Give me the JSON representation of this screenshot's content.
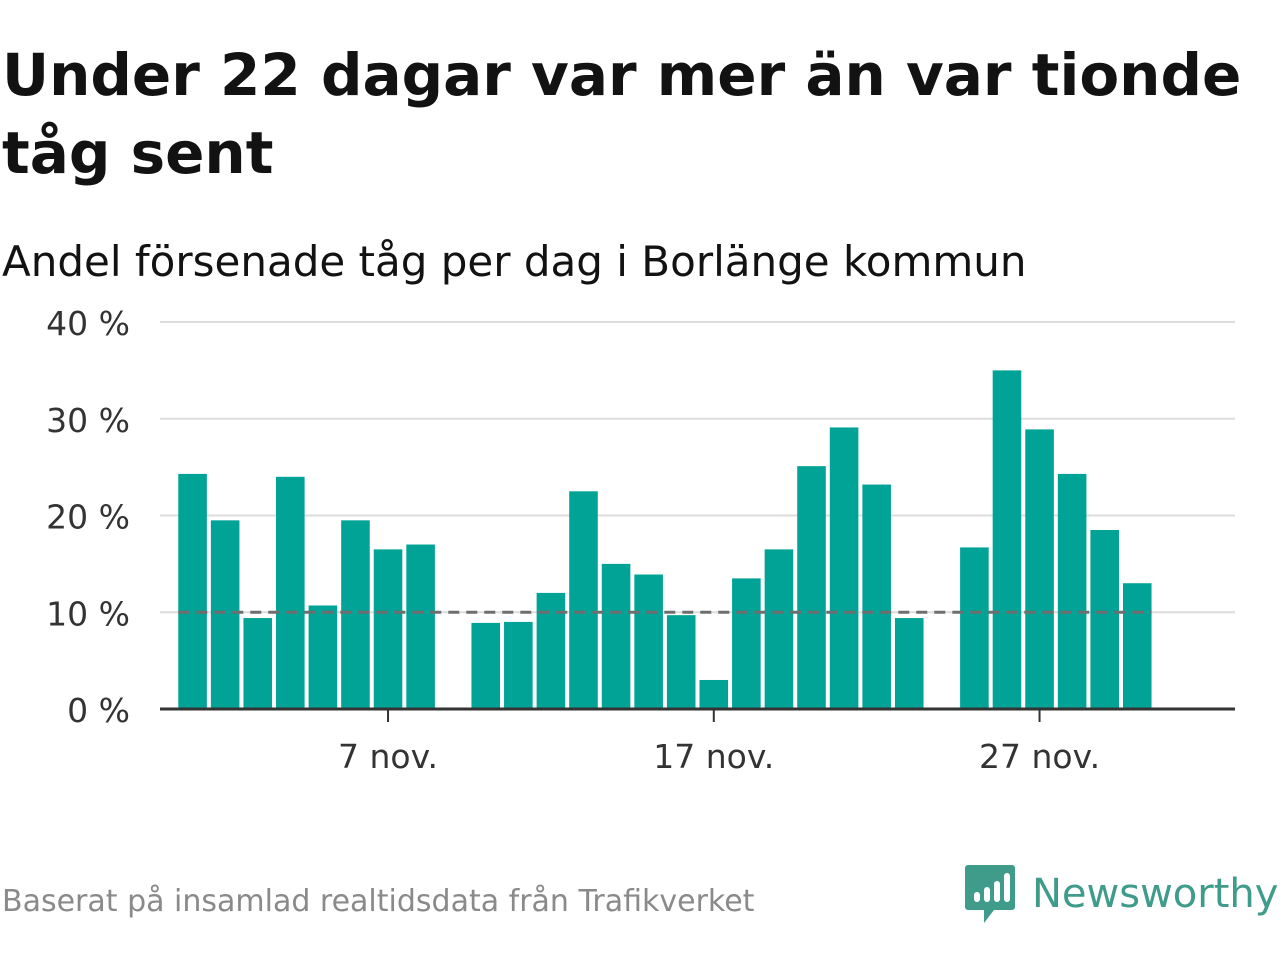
{
  "title": "Under 22 dagar var mer än var tionde tåg sent",
  "subtitle": "Andel försenade tåg per dag i Borlänge kommun",
  "footer": "Baserat på insamlad realtidsdata från Trafikverket",
  "brand": {
    "name": "Newsworthy",
    "color": "#3f9b8a"
  },
  "colors": {
    "bar": "#00a396",
    "reference_line": "#6e6e6e",
    "grid": "#dddddd"
  },
  "chart_data": {
    "type": "bar",
    "title": "Under 22 dagar var mer än var tionde tåg sent",
    "subtitle": "Andel försenade tåg per dag i Borlänge kommun",
    "xlabel": "",
    "ylabel": "",
    "x_unit": "day of November",
    "x": [
      1,
      2,
      3,
      4,
      5,
      6,
      7,
      8,
      9,
      10,
      11,
      12,
      13,
      14,
      15,
      16,
      17,
      18,
      19,
      20,
      21,
      22,
      23,
      24,
      25,
      26,
      27,
      28,
      29,
      30
    ],
    "values": [
      24.3,
      19.5,
      9.4,
      24.0,
      10.7,
      19.5,
      16.5,
      17.0,
      null,
      8.9,
      9.0,
      12.0,
      22.5,
      15.0,
      13.9,
      9.7,
      3.0,
      13.5,
      16.5,
      25.1,
      29.1,
      23.2,
      9.4,
      null,
      16.7,
      35.0,
      28.9,
      24.3,
      18.5,
      13.0
    ],
    "ylim": [
      0,
      40
    ],
    "y_ticks": [
      0,
      10,
      20,
      30,
      40
    ],
    "y_tick_labels": [
      "0 %",
      "10 %",
      "20 %",
      "30 %",
      "40 %"
    ],
    "x_ticks": [
      7,
      17,
      27
    ],
    "x_tick_labels": [
      "7 nov.",
      "17 nov.",
      "27 nov."
    ],
    "reference_line": {
      "value": 10,
      "style": "dashed"
    },
    "grid": true,
    "legend": "none"
  }
}
